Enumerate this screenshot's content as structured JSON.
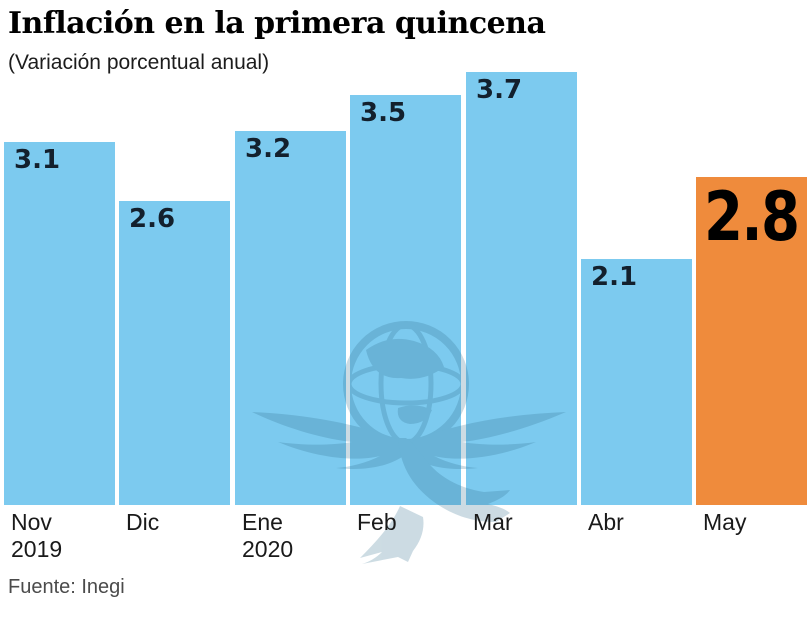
{
  "header": {
    "title": "Inflación en la primera quincena",
    "subtitle": "(Variación porcentual anual)"
  },
  "footer": {
    "source": "Fuente: Inegi"
  },
  "watermark_icon": "eagle-globe-logo",
  "chart_data": {
    "type": "bar",
    "title": "Inflación en la primera quincena",
    "subtitle": "(Variación porcentual anual)",
    "categories": [
      "Nov 2019",
      "Dic",
      "Ene 2020",
      "Feb",
      "Mar",
      "Abr",
      "May"
    ],
    "values": [
      3.1,
      2.6,
      3.2,
      3.5,
      3.7,
      2.1,
      2.8
    ],
    "value_labels": [
      "3.1",
      "2.6",
      "3.2",
      "3.5",
      "3.7",
      "2.1",
      "2.8"
    ],
    "tick_lines": [
      [
        "Nov",
        "2019"
      ],
      [
        "Dic"
      ],
      [
        "Ene",
        "2020"
      ],
      [
        "Feb"
      ],
      [
        "Mar"
      ],
      [
        "Abr"
      ],
      [
        "May"
      ]
    ],
    "highlight_index": 6,
    "colors": {
      "bar": "#7CCAEF",
      "highlight": "#EF8B3C",
      "value_label": "#13202D",
      "highlight_label": "#000000",
      "watermark": "#2E6E8C"
    },
    "ylim": [
      0,
      4.3
    ],
    "grid": false,
    "legend": false,
    "xlabel": "",
    "ylabel": "",
    "source": "Fuente: Inegi"
  }
}
